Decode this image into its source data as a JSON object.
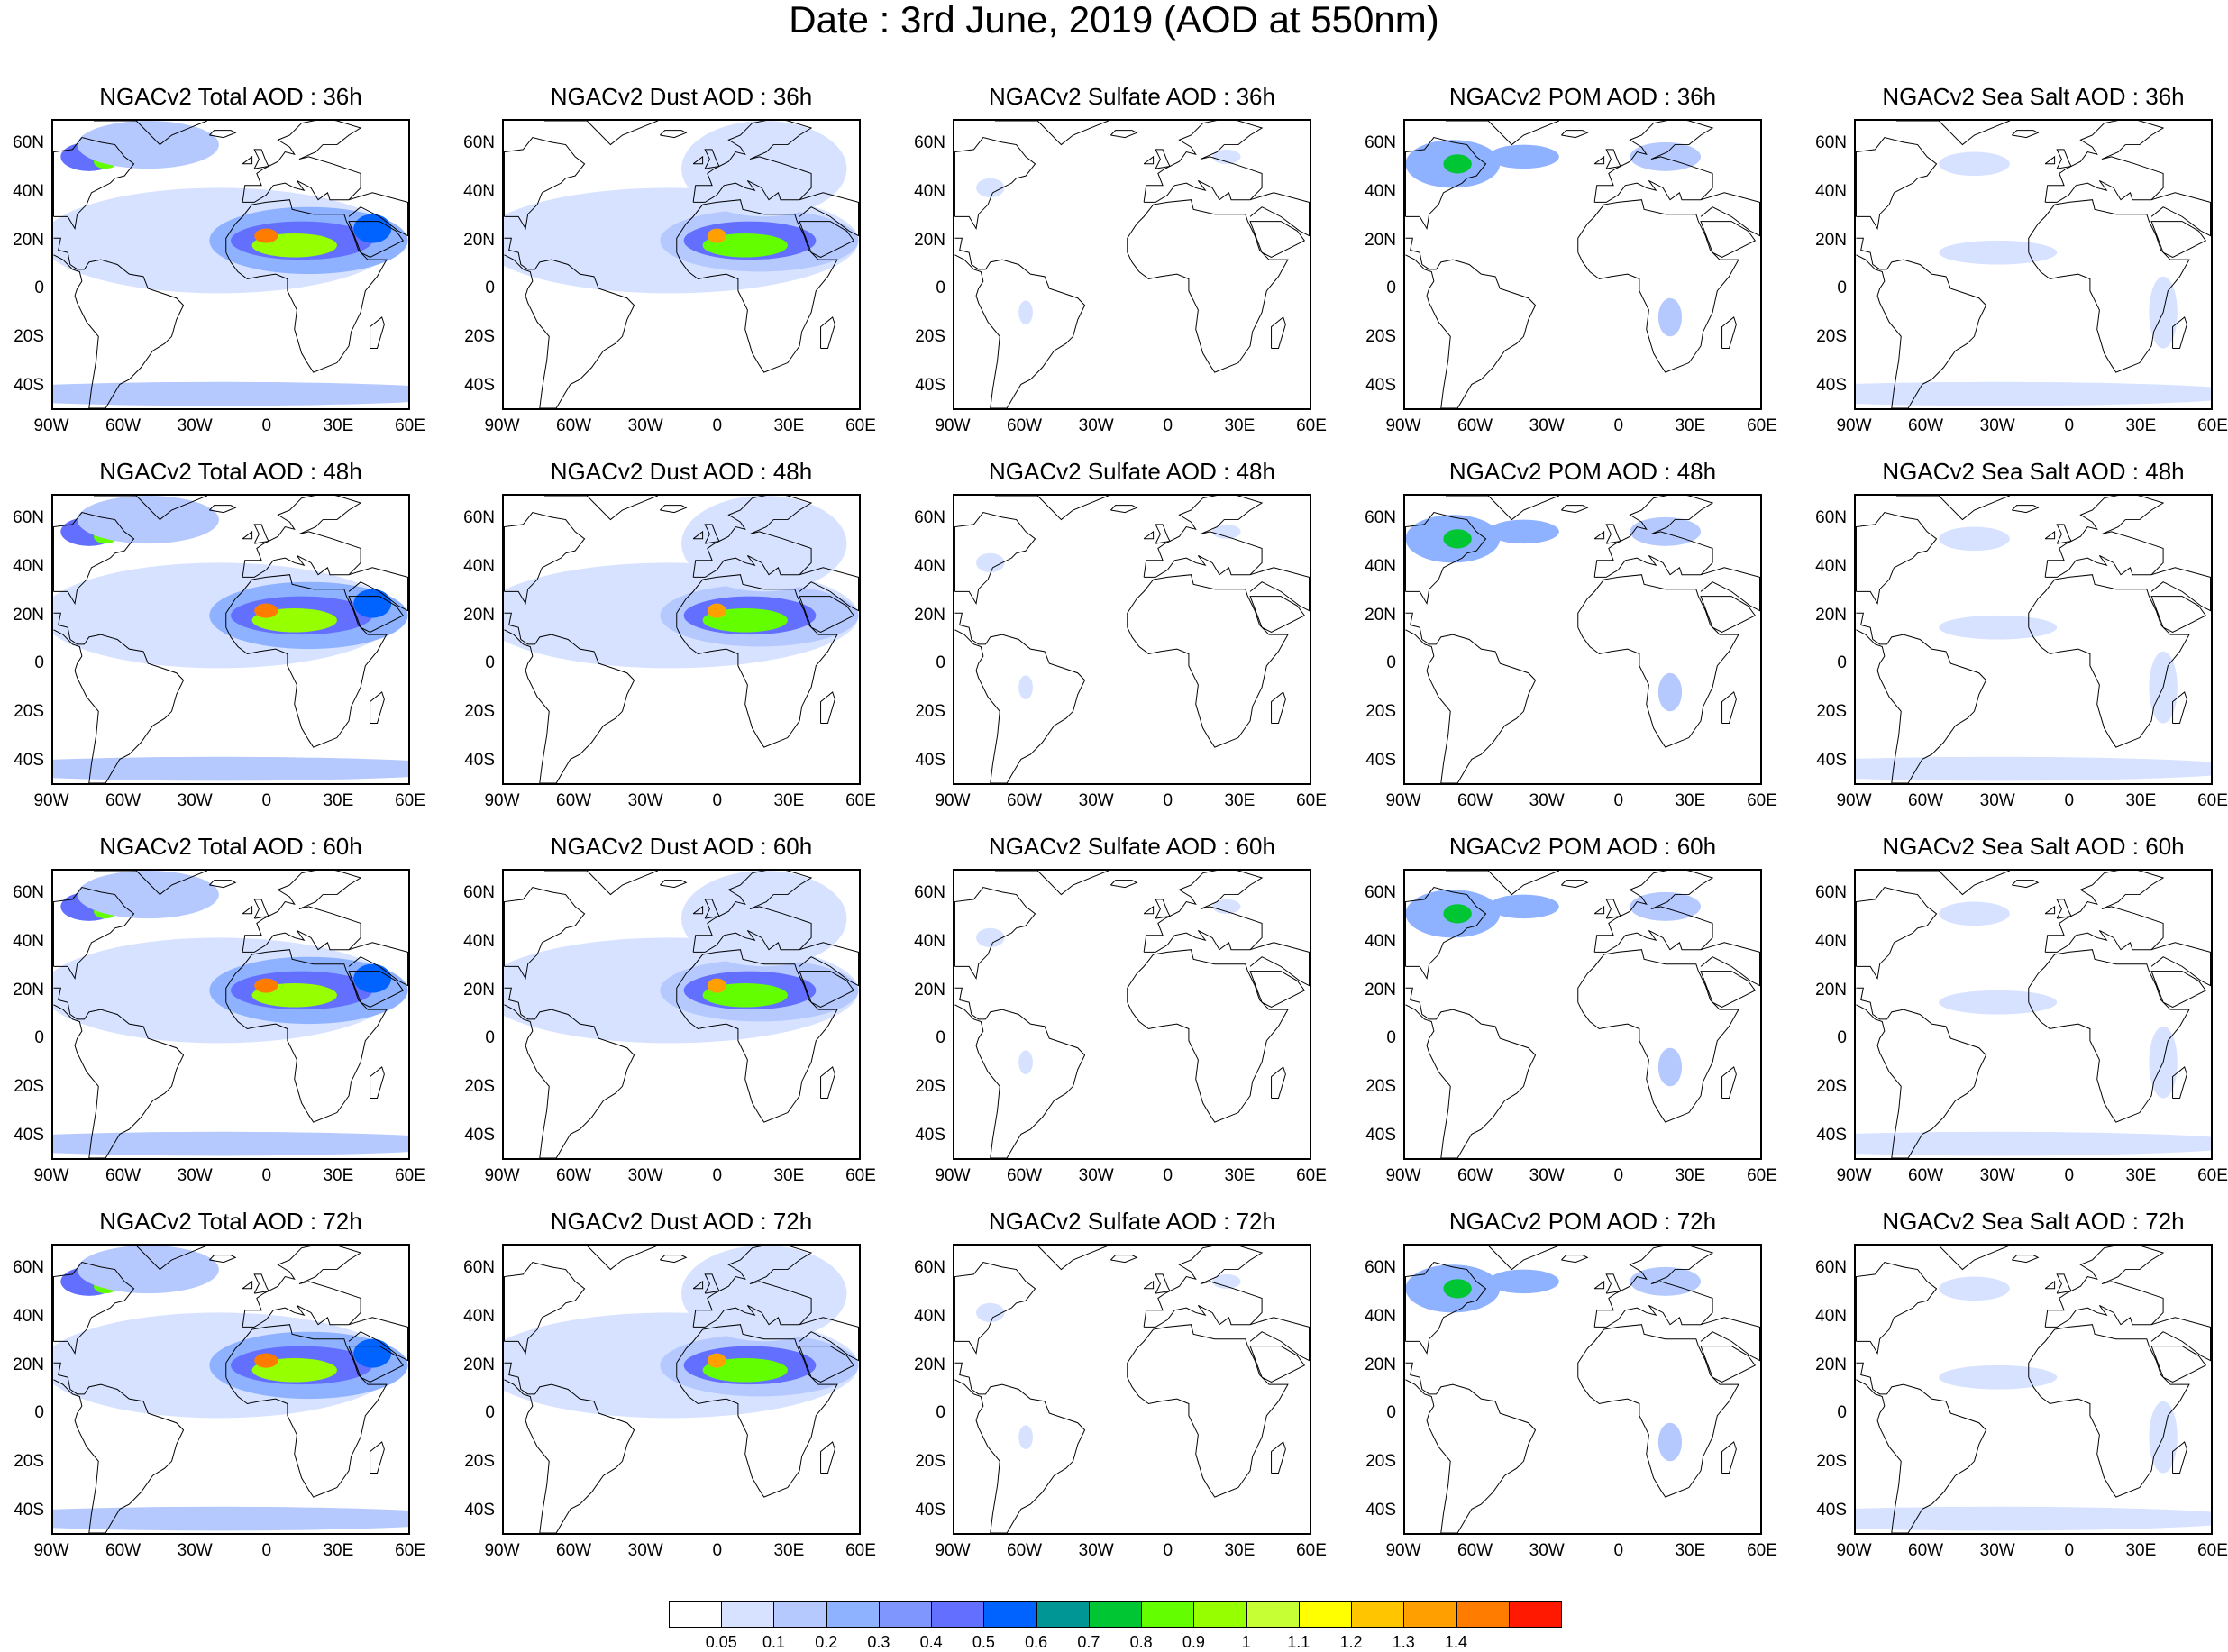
{
  "title": "Date : 3rd June, 2019 (AOD at 550nm)",
  "lat_ticks": [
    "60N",
    "40N",
    "20N",
    "0",
    "20S",
    "40S"
  ],
  "lat_values": [
    60,
    40,
    20,
    0,
    -20,
    -40
  ],
  "lon_ticks": [
    "90W",
    "60W",
    "30W",
    "0",
    "30E",
    "60E"
  ],
  "lon_values": [
    -90,
    -60,
    -30,
    0,
    30,
    60
  ],
  "map_extent": {
    "lon_min": -90,
    "lon_max": 60,
    "lat_min": -50,
    "lat_max": 70
  },
  "forecast_hours": [
    "36h",
    "48h",
    "60h",
    "72h"
  ],
  "species": [
    "Total",
    "Dust",
    "Sulfate",
    "POM",
    "Sea Salt"
  ],
  "panels": [
    {
      "title": "NGACv2 Total AOD : 36h",
      "species": "total",
      "hour": 36
    },
    {
      "title": "NGACv2 Dust AOD : 36h",
      "species": "dust",
      "hour": 36
    },
    {
      "title": "NGACv2 Sulfate AOD : 36h",
      "species": "sulfate",
      "hour": 36
    },
    {
      "title": "NGACv2 POM AOD : 36h",
      "species": "pom",
      "hour": 36
    },
    {
      "title": "NGACv2 Sea Salt AOD : 36h",
      "species": "seasalt",
      "hour": 36
    },
    {
      "title": "NGACv2 Total AOD : 48h",
      "species": "total",
      "hour": 48
    },
    {
      "title": "NGACv2 Dust AOD : 48h",
      "species": "dust",
      "hour": 48
    },
    {
      "title": "NGACv2 Sulfate AOD : 48h",
      "species": "sulfate",
      "hour": 48
    },
    {
      "title": "NGACv2 POM AOD : 48h",
      "species": "pom",
      "hour": 48
    },
    {
      "title": "NGACv2 Sea Salt AOD : 48h",
      "species": "seasalt",
      "hour": 48
    },
    {
      "title": "NGACv2 Total AOD : 60h",
      "species": "total",
      "hour": 60
    },
    {
      "title": "NGACv2 Dust AOD : 60h",
      "species": "dust",
      "hour": 60
    },
    {
      "title": "NGACv2 Sulfate AOD : 60h",
      "species": "sulfate",
      "hour": 60
    },
    {
      "title": "NGACv2 POM AOD : 60h",
      "species": "pom",
      "hour": 60
    },
    {
      "title": "NGACv2 Sea Salt AOD : 60h",
      "species": "seasalt",
      "hour": 60
    },
    {
      "title": "NGACv2 Total AOD : 72h",
      "species": "total",
      "hour": 72
    },
    {
      "title": "NGACv2 Dust AOD : 72h",
      "species": "dust",
      "hour": 72
    },
    {
      "title": "NGACv2 Sulfate AOD : 72h",
      "species": "sulfate",
      "hour": 72
    },
    {
      "title": "NGACv2 POM AOD : 72h",
      "species": "pom",
      "hour": 72
    },
    {
      "title": "NGACv2 Sea Salt  AOD : 72h",
      "species": "seasalt",
      "hour": 72
    }
  ],
  "colorbar": {
    "colors": [
      "#ffffff",
      "#d6e2ff",
      "#b5c9ff",
      "#8eb2ff",
      "#7f96ff",
      "#6370ff",
      "#0063ff",
      "#009696",
      "#00c633",
      "#63ff00",
      "#96ff00",
      "#c6ff33",
      "#ffff00",
      "#ffc600",
      "#ffa000",
      "#ff7c00",
      "#ff1900"
    ],
    "labels": [
      "0.05",
      "0.1",
      "0.2",
      "0.3",
      "0.4",
      "0.5",
      "0.6",
      "0.7",
      "0.8",
      "0.9",
      "1",
      "1.1",
      "1.2",
      "1.3",
      "1.4"
    ]
  }
}
